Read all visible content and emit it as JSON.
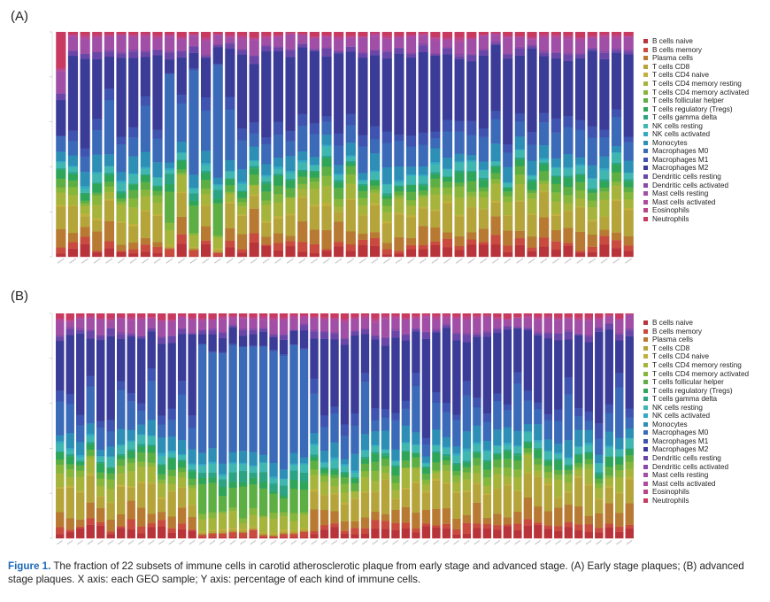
{
  "chart_data": [
    {
      "panel": "(A)",
      "type": "bar",
      "stacked": true,
      "n_samples": 48,
      "x_tick_labels_legible": false,
      "ylim": [
        0,
        1
      ],
      "y_ticks": [
        0,
        0.2,
        0.4,
        0.6,
        0.8,
        1.0
      ],
      "legend_position": "right",
      "cell_types": [
        "B cells naive",
        "B cells memory",
        "Plasma cells",
        "T cells CD8",
        "T cells CD4 naive",
        "T cells CD4 memory resting",
        "T cells CD4 memory activated",
        "T cells follicular helper",
        "T cells regulatory (Tregs)",
        "T cells gamma delta",
        "NK cells resting",
        "NK cells activated",
        "Monocytes",
        "Macrophages M0",
        "Macrophages M1",
        "Macrophages M2",
        "Dendritic cells resting",
        "Dendritic cells activated",
        "Mast cells resting",
        "Mast cells activated",
        "Eosinophils",
        "Neutrophils"
      ],
      "colors": [
        "#b8333a",
        "#c94a3e",
        "#b87a32",
        "#b5a43a",
        "#c2b03c",
        "#a6b43b",
        "#86b63c",
        "#5dae43",
        "#2fa55a",
        "#2ca484",
        "#3fb6b0",
        "#34a9c4",
        "#2d8fb6",
        "#3a6ab8",
        "#3f54b0",
        "#3a3c98",
        "#6a46a8",
        "#8a4ba6",
        "#a14ea6",
        "#b04a9e",
        "#bb4488",
        "#c83a60"
      ]
    },
    {
      "panel": "(B)",
      "type": "bar",
      "stacked": true,
      "n_samples": 57,
      "x_tick_labels_legible": false,
      "ylim": [
        0,
        1
      ],
      "y_ticks": [
        0,
        0.2,
        0.4,
        0.6,
        0.8,
        1.0
      ],
      "legend_position": "right",
      "cell_types": [
        "B cells naive",
        "B cells memory",
        "Plasma cells",
        "T cells CD8",
        "T cells CD4 naive",
        "T cells CD4 memory resting",
        "T cells CD4 memory activated",
        "T cells follicular helper",
        "T cells regulatory (Tregs)",
        "T cells gamma delta",
        "NK cells resting",
        "NK cells activated",
        "Monocytes",
        "Macrophages M0",
        "Macrophages M1",
        "Macrophages M2",
        "Dendritic cells resting",
        "Dendritic cells activated",
        "Mast cells resting",
        "Mast cells activated",
        "Eosinophils",
        "Neutrophils"
      ]
    }
  ],
  "panels": {
    "a": {
      "label": "(A)"
    },
    "b": {
      "label": "(B)"
    }
  },
  "legend": {
    "items": [
      "B cells naive",
      "B cells memory",
      "Plasma cells",
      "T cells CD8",
      "T cells CD4 naive",
      "T cells CD4 memory resting",
      "T cells CD4 memory activated",
      "T cells follicular helper",
      "T cells regulatory (Tregs)",
      "T cells gamma delta",
      "NK cells resting",
      "NK cells activated",
      "Monocytes",
      "Macrophages M0",
      "Macrophages M1",
      "Macrophages M2",
      "Dendritic cells resting",
      "Dendritic cells activated",
      "Mast cells resting",
      "Mast cells activated",
      "Eosinophils",
      "Neutrophils"
    ]
  },
  "caption": {
    "figure_label": "Figure 1.",
    "text": " The fraction of 22 subsets of immune cells in carotid atherosclerotic plaque from early stage and advanced stage. (A) Early stage plaques; (B) advanced stage plaques. X axis: each GEO sample; Y axis: percentage of each kind of immune cells."
  }
}
